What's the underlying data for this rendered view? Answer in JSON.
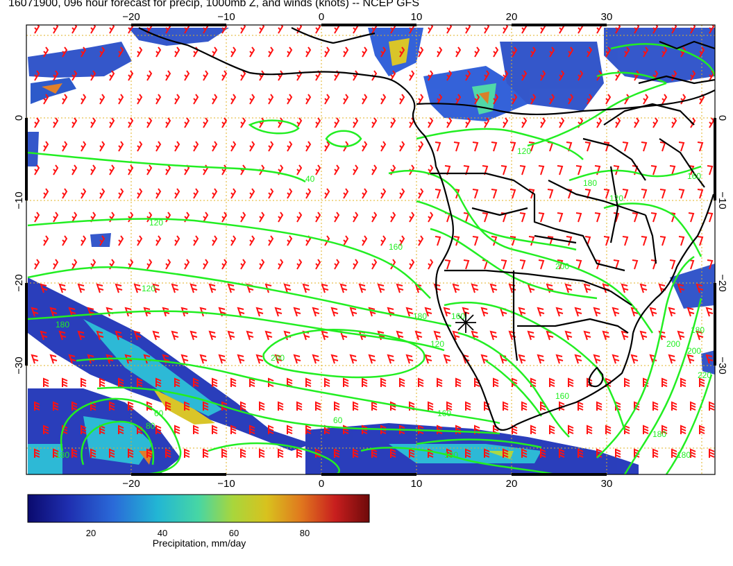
{
  "title": "16071900, 096 hour forecast for precip, 1000mb Z, and winds (knots) -- NCEP GFS",
  "axes": {
    "lon_ticks": [
      "−20",
      "−10",
      "0",
      "10",
      "20",
      "30"
    ],
    "lat_ticks_left": [
      "0",
      "−10",
      "−20",
      "−30"
    ],
    "lat_ticks_right": [
      "0",
      "−10",
      "−20",
      "−30"
    ]
  },
  "contour_labels": [
    "40",
    "120",
    "160",
    "120",
    "160",
    "120",
    "180",
    "160",
    "180",
    "200",
    "200",
    "120",
    "180",
    "200",
    "160",
    "60",
    "60",
    "80",
    "100",
    "180",
    "180",
    "200",
    "220",
    "120",
    "180",
    "160",
    "180"
  ],
  "colorbar": {
    "ticks": [
      "20",
      "40",
      "60",
      "80"
    ],
    "label": "Precipitation, mm/day",
    "colors": [
      "#0a0a6e",
      "#1f2fb0",
      "#2a6ad8",
      "#22b6d4",
      "#47d6a4",
      "#a8d63c",
      "#d8c21e",
      "#e0781e",
      "#c81e1e",
      "#6e0a0a"
    ]
  },
  "style": {
    "land_outline": "#000000",
    "contour_color": "#22ee22",
    "wind_color": "#ff1111",
    "grid_color": "#e0b020"
  }
}
